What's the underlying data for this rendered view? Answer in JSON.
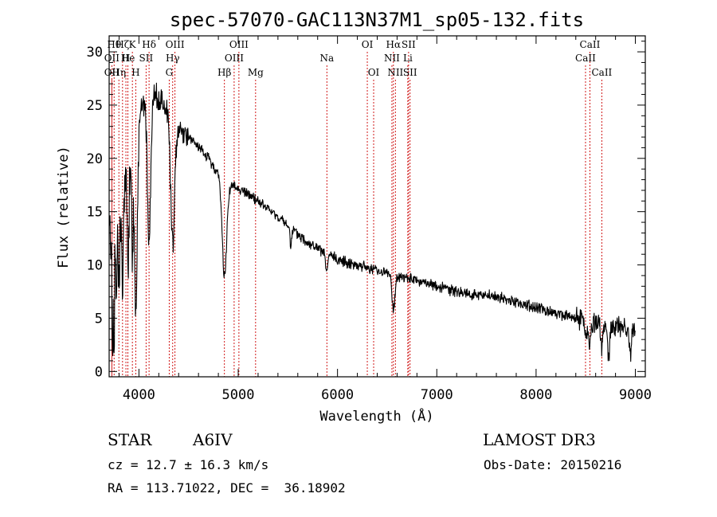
{
  "chart_data": {
    "type": "line",
    "title": "spec-57070-GAC113N37M1_sp05-132.fits",
    "xlabel": "Wavelength (Å)",
    "ylabel": "Flux (relative)",
    "xlim": [
      3700,
      9100
    ],
    "ylim": [
      -0.5,
      31.5
    ],
    "xticks": [
      4000,
      5000,
      6000,
      7000,
      8000,
      9000
    ],
    "yticks": [
      0,
      5,
      10,
      15,
      20,
      25,
      30
    ],
    "continuum_anchors": [
      [
        3700,
        12
      ],
      [
        3760,
        16
      ],
      [
        3820,
        17
      ],
      [
        3880,
        20
      ],
      [
        3940,
        21
      ],
      [
        4000,
        24
      ],
      [
        4100,
        26
      ],
      [
        4200,
        25.5
      ],
      [
        4300,
        24.5
      ],
      [
        4400,
        23
      ],
      [
        4500,
        22
      ],
      [
        4600,
        21
      ],
      [
        4700,
        20
      ],
      [
        4800,
        18.5
      ],
      [
        4900,
        17.5
      ],
      [
        5000,
        17.2
      ],
      [
        5200,
        16
      ],
      [
        5400,
        14.5
      ],
      [
        5600,
        12.8
      ],
      [
        5800,
        11.5
      ],
      [
        6000,
        10.5
      ],
      [
        6200,
        10
      ],
      [
        6400,
        9.5
      ],
      [
        6600,
        9
      ],
      [
        6800,
        8.5
      ],
      [
        7000,
        8
      ],
      [
        7200,
        7.5
      ],
      [
        7400,
        7.2
      ],
      [
        7600,
        7
      ],
      [
        7800,
        6.5
      ],
      [
        8000,
        6
      ],
      [
        8200,
        5.5
      ],
      [
        8400,
        5
      ],
      [
        8600,
        4.5
      ],
      [
        8800,
        4.2
      ],
      [
        9000,
        4
      ],
      [
        9100,
        3.8
      ]
    ],
    "absorption_features": [
      {
        "wave": 3734,
        "depth": 12,
        "width": 6
      },
      {
        "wave": 3750,
        "depth": 11,
        "width": 6
      },
      {
        "wave": 3771,
        "depth": 10,
        "width": 7
      },
      {
        "wave": 3798,
        "depth": 9,
        "width": 8
      },
      {
        "wave": 3835,
        "depth": 10,
        "width": 10
      },
      {
        "wave": 3889,
        "depth": 9,
        "width": 12
      },
      {
        "wave": 3933,
        "depth": 8,
        "width": 10
      },
      {
        "wave": 3970,
        "depth": 16,
        "width": 13
      },
      {
        "wave": 4102,
        "depth": 14,
        "width": 16
      },
      {
        "wave": 4340,
        "depth": 12,
        "width": 20
      },
      {
        "wave": 4861,
        "depth": 9,
        "width": 22
      },
      {
        "wave": 5530,
        "depth": 1.5,
        "width": 8
      },
      {
        "wave": 5890,
        "depth": 2,
        "width": 10
      },
      {
        "wave": 6563,
        "depth": 3.5,
        "width": 14
      },
      {
        "wave": 8498,
        "depth": 1.5,
        "width": 10
      },
      {
        "wave": 8542,
        "depth": 2,
        "width": 12
      },
      {
        "wave": 8662,
        "depth": 2,
        "width": 12
      },
      {
        "wave": 8730,
        "depth": 3.5,
        "width": 8
      },
      {
        "wave": 8950,
        "depth": 3,
        "width": 10
      }
    ],
    "spectral_lines": [
      {
        "wave": 3727,
        "label": "OII",
        "row": 1
      },
      {
        "wave": 3727,
        "label": "OII",
        "row": 2
      },
      {
        "wave": 3750,
        "label": "Hθ",
        "row": 0
      },
      {
        "wave": 3798,
        "label": "Hη",
        "row": 2
      },
      {
        "wave": 3835,
        "label": "Hζ",
        "row": 0
      },
      {
        "wave": 3869,
        "label": "H",
        "row": 1
      },
      {
        "wave": 3889,
        "label": "He",
        "row": 1
      },
      {
        "wave": 3934,
        "label": "K",
        "row": 0
      },
      {
        "wave": 3968,
        "label": "H",
        "row": 2
      },
      {
        "wave": 4072,
        "label": "SII",
        "row": 1
      },
      {
        "wave": 4102,
        "label": "Hδ",
        "row": 0
      },
      {
        "wave": 4305,
        "label": "G",
        "row": 2
      },
      {
        "wave": 4340,
        "label": "Hγ",
        "row": 1
      },
      {
        "wave": 4363,
        "label": "OIII",
        "row": 0
      },
      {
        "wave": 4861,
        "label": "Hβ",
        "row": 2
      },
      {
        "wave": 4959,
        "label": "OIII",
        "row": 1
      },
      {
        "wave": 5007,
        "label": "OIII",
        "row": 0
      },
      {
        "wave": 5175,
        "label": "Mg",
        "row": 2
      },
      {
        "wave": 5893,
        "label": "Na",
        "row": 1
      },
      {
        "wave": 6300,
        "label": "OI",
        "row": 0
      },
      {
        "wave": 6364,
        "label": "OI",
        "row": 2
      },
      {
        "wave": 6548,
        "label": "NII",
        "row": 1
      },
      {
        "wave": 6563,
        "label": "Hα",
        "row": 0
      },
      {
        "wave": 6583,
        "label": "NII",
        "row": 2
      },
      {
        "wave": 6708,
        "label": "Li",
        "row": 1
      },
      {
        "wave": 6716,
        "label": "SII",
        "row": 0
      },
      {
        "wave": 6731,
        "label": "SII",
        "row": 2
      },
      {
        "wave": 8498,
        "label": "CaII",
        "row": 1
      },
      {
        "wave": 8542,
        "label": "CaII",
        "row": 0
      },
      {
        "wave": 8662,
        "label": "CaII",
        "row": 2
      }
    ],
    "line_color": "#000000",
    "marker_color": "#cc0000"
  },
  "info": {
    "object_class": "STAR",
    "subclass": "A6IV",
    "survey": "LAMOST DR3",
    "redshift_text": "cz = 12.7 ± 16.3 km/s",
    "obs_date_text": "Obs-Date: 20150216",
    "coords_text": "RA = 113.71022, DEC =  36.18902"
  }
}
